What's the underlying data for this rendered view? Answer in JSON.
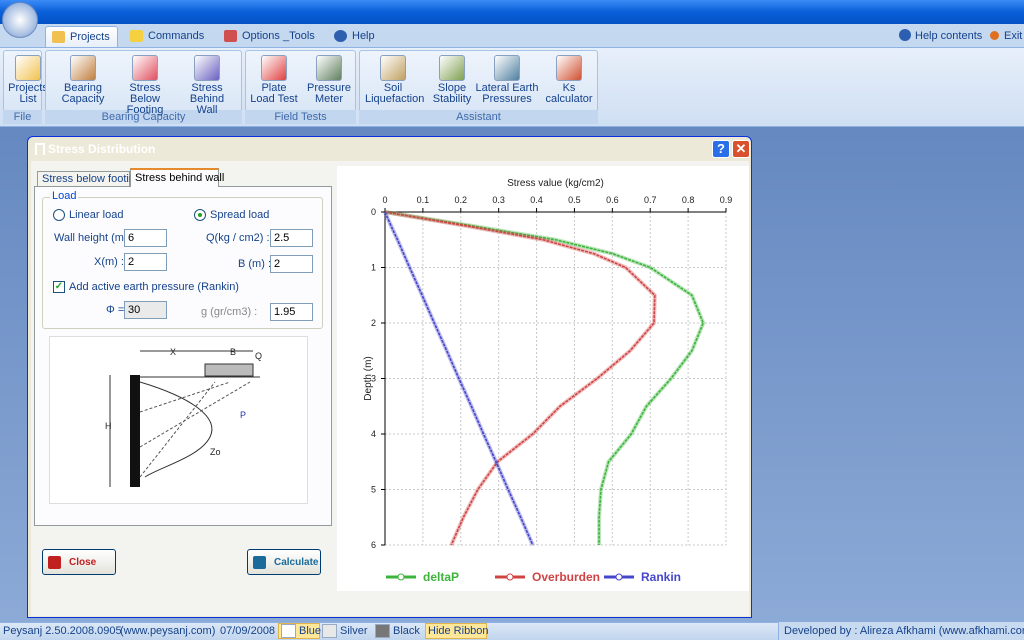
{
  "menu": {
    "tabs": [
      "Projects",
      "Commands",
      "Options _Tools",
      "Help"
    ],
    "help_contents": "Help contents",
    "exit": "Exit"
  },
  "ribbon": {
    "groups": [
      {
        "label": "File",
        "buttons": [
          "Projects List"
        ]
      },
      {
        "label": "Bearing Capacity",
        "buttons": [
          "Bearing Capacity",
          "Stress Below Footing",
          "Stress Behind Wall"
        ]
      },
      {
        "label": "Field Tests",
        "buttons": [
          "Plate Load Test",
          "Pressure Meter"
        ]
      },
      {
        "label": "Assistant",
        "buttons": [
          "Soil Liquefaction",
          "Slope Stability",
          "Lateral Earth Pressures",
          "Ks calculator"
        ]
      }
    ]
  },
  "dialog": {
    "title": "Stress Distribution",
    "tabs": [
      "Stress below footing",
      "Stress behind wall"
    ],
    "load_group": "Load",
    "linear_load": "Linear load",
    "spread_load": "Spread load",
    "fields": [
      {
        "label": "Wall height (m) :",
        "value": 6
      },
      {
        "label": "X(m) :",
        "value": 2
      },
      {
        "label": "Φ =",
        "value": 30
      },
      {
        "label": "Q(kg / cm2) :",
        "value": 2.5
      },
      {
        "label": "B (m) :",
        "value": 2
      },
      {
        "label": "g (gr/cm3) :",
        "value": 1.95
      }
    ],
    "checkbox": "Add active earth pressure (Rankin)",
    "figure_labels": [
      "X",
      "B",
      "Q",
      "P",
      "H",
      "Zo"
    ],
    "close": "Close",
    "calculate": "Calculate"
  },
  "chart_data": {
    "type": "line",
    "xlabel": "Stress value (kg/cm2)",
    "ylabel": "Depth (m)",
    "x_axis_position": "top",
    "y_inverted": true,
    "grid": true,
    "legend": "bottom",
    "xlim": [
      0,
      0.9
    ],
    "xticks": [
      0,
      0.1,
      0.2,
      0.3,
      0.4,
      0.5,
      0.6,
      0.7,
      0.8,
      0.9
    ],
    "ylim": [
      0,
      6
    ],
    "yticks": [
      0,
      1,
      2,
      3,
      4,
      5,
      6
    ],
    "y": [
      0,
      0.25,
      0.5,
      0.75,
      1,
      1.5,
      2,
      2.5,
      3,
      3.5,
      4,
      4.5,
      5,
      5.5,
      6
    ],
    "series": [
      {
        "name": "deltaP",
        "color": "#3cb43c",
        "values": [
          0,
          0.23,
          0.45,
          0.6,
          0.7,
          0.81,
          0.84,
          0.81,
          0.755,
          0.69,
          0.65,
          0.59,
          0.57,
          0.565,
          0.565
        ]
      },
      {
        "name": "Overburden",
        "color": "#d04444",
        "values": [
          0,
          0.214,
          0.417,
          0.551,
          0.635,
          0.712,
          0.71,
          0.647,
          0.56,
          0.462,
          0.39,
          0.297,
          0.245,
          0.207,
          0.175
        ]
      },
      {
        "name": "Rankin",
        "color": "#4646cc",
        "values": [
          0,
          0.016,
          0.033,
          0.049,
          0.065,
          0.098,
          0.13,
          0.163,
          0.195,
          0.228,
          0.26,
          0.293,
          0.325,
          0.358,
          0.39
        ]
      }
    ]
  },
  "status": {
    "items": [
      "Peysanj 2.50.2008.0905",
      "(www.peysanj.com)",
      "07/09/2008"
    ],
    "themes": [
      "Blue",
      "Silver",
      "Black"
    ],
    "hide_ribbon": "Hide Ribbon",
    "developer": "Developed by : Alireza Afkhami (www.afkhami.com)"
  }
}
